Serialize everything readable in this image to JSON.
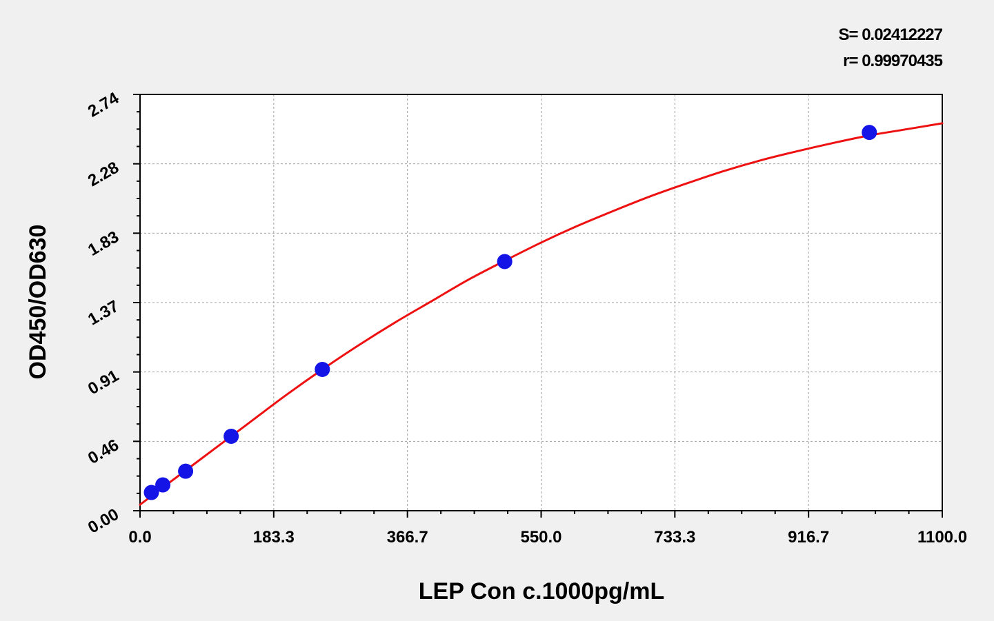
{
  "stats": {
    "s_label": "S= 0.02412227",
    "r_label": "r= 0.99970435"
  },
  "chart_data": {
    "type": "scatter",
    "xlabel": "LEP Con c.1000pg/mL",
    "ylabel": "OD450/OD630",
    "xlim": [
      0,
      1100
    ],
    "ylim": [
      0,
      2.74
    ],
    "x_ticks": [
      "0.0",
      "183.3",
      "366.7",
      "550.0",
      "733.3",
      "916.7",
      "1100.0"
    ],
    "y_ticks": [
      "0.00",
      "0.46",
      "0.91",
      "1.37",
      "1.83",
      "2.28",
      "2.74"
    ],
    "grid": true,
    "series": [
      {
        "kind": "points",
        "x": [
          15.6,
          31.25,
          62.5,
          125,
          250,
          500,
          1000
        ],
        "y": [
          0.12,
          0.17,
          0.26,
          0.49,
          0.93,
          1.64,
          2.49
        ]
      },
      {
        "kind": "fitted-curve",
        "x": [
          0,
          50,
          100,
          150,
          200,
          250,
          300,
          350,
          400,
          450,
          500,
          550,
          600,
          650,
          700,
          750,
          800,
          850,
          900,
          950,
          1000,
          1050,
          1100
        ],
        "y": [
          0.04,
          0.22,
          0.4,
          0.58,
          0.76,
          0.93,
          1.09,
          1.24,
          1.38,
          1.52,
          1.645,
          1.765,
          1.875,
          1.975,
          2.07,
          2.155,
          2.235,
          2.305,
          2.365,
          2.42,
          2.47,
          2.51,
          2.55
        ]
      }
    ],
    "colors": {
      "points": "#1414e6",
      "curve": "#ee1111",
      "grid": "#a0a0a0"
    }
  }
}
